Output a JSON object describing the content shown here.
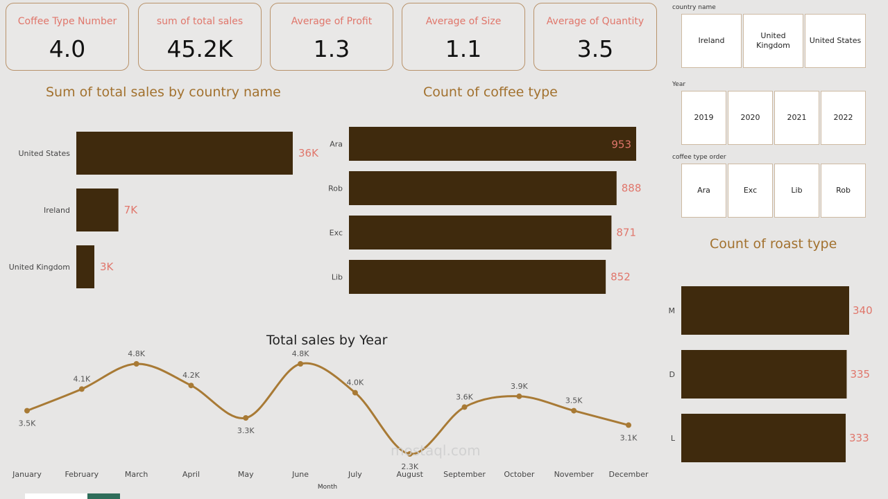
{
  "kpis": [
    {
      "label": "Coffee Type Number",
      "value": "4.0"
    },
    {
      "label": "sum of total sales",
      "value": "45.2K"
    },
    {
      "label": "Average of Profit",
      "value": "1.3"
    },
    {
      "label": "Average of Size",
      "value": "1.1"
    },
    {
      "label": "Average of Quantity",
      "value": "3.5"
    }
  ],
  "slicers": {
    "country": {
      "label": "country name",
      "options": [
        "Ireland",
        "United Kingdom",
        "United States"
      ]
    },
    "year": {
      "label": "Year",
      "options": [
        "2019",
        "2020",
        "2021",
        "2022"
      ]
    },
    "coffee_type": {
      "label": "coffee type order",
      "options": [
        "Ara",
        "Exc",
        "Lib",
        "Rob"
      ]
    }
  },
  "watermark": "mostaql.com",
  "colors": {
    "bar": "#3f2a0d",
    "label": "#e0766b",
    "title": "#a2712e",
    "line": "#a87a35",
    "border": "#b8926a"
  },
  "chart_data": [
    {
      "type": "bar",
      "title": "Sum of total sales by country name",
      "categories": [
        "United States",
        "Ireland",
        "United Kingdom"
      ],
      "values": [
        36000,
        7000,
        3000
      ],
      "labels": [
        "36K",
        "7K",
        "3K"
      ]
    },
    {
      "type": "bar",
      "title": "Count of coffee type",
      "categories": [
        "Ara",
        "Rob",
        "Exc",
        "Lib"
      ],
      "values": [
        953,
        888,
        871,
        852
      ],
      "labels": [
        "953",
        "888",
        "871",
        "852"
      ]
    },
    {
      "type": "bar",
      "title": "Count of roast type",
      "categories": [
        "M",
        "D",
        "L"
      ],
      "values": [
        340,
        335,
        333
      ],
      "labels": [
        "340",
        "335",
        "333"
      ]
    },
    {
      "type": "line",
      "title": "Total sales by Year",
      "xlabel": "Month",
      "categories": [
        "January",
        "February",
        "March",
        "April",
        "May",
        "June",
        "July",
        "August",
        "September",
        "October",
        "November",
        "December"
      ],
      "values": [
        3500,
        4100,
        4800,
        4200,
        3300,
        4800,
        4000,
        2300,
        3600,
        3900,
        3500,
        3100
      ],
      "labels": [
        "3.5K",
        "4.1K",
        "4.8K",
        "4.2K",
        "3.3K",
        "4.8K",
        "4.0K",
        "2.3K",
        "3.6K",
        "3.9K",
        "3.5K",
        "3.1K"
      ]
    }
  ]
}
